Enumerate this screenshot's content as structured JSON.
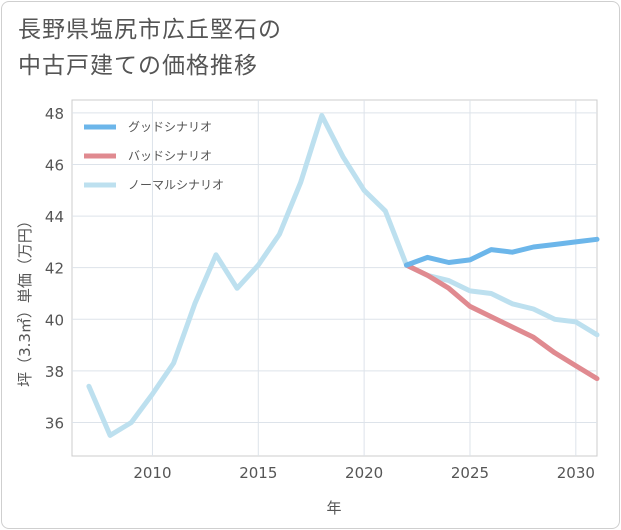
{
  "chart_data": {
    "type": "line",
    "title": [
      "長野県塩尻市広丘堅石の",
      "中古戸建ての価格推移"
    ],
    "xlabel": "年",
    "ylabel": "坪（3.3㎡）単価（万円）",
    "xlim": [
      2006.2,
      2031
    ],
    "ylim": [
      34.7,
      48.5
    ],
    "x_ticks": [
      2010,
      2015,
      2020,
      2025,
      2030
    ],
    "y_ticks": [
      36,
      38,
      40,
      42,
      44,
      46,
      48
    ],
    "grid": true,
    "legend_position": "top-left",
    "series": [
      {
        "name": "グッドシナリオ",
        "color": "#6cb6ea",
        "x": [
          2022,
          2023,
          2024,
          2025,
          2026,
          2027,
          2028,
          2029,
          2030,
          2031
        ],
        "y": [
          42.1,
          42.4,
          42.2,
          42.3,
          42.7,
          42.6,
          42.8,
          42.9,
          43.0,
          43.1
        ]
      },
      {
        "name": "バッドシナリオ",
        "color": "#e08a90",
        "x": [
          2022,
          2023,
          2024,
          2025,
          2026,
          2027,
          2028,
          2029,
          2030,
          2031
        ],
        "y": [
          42.1,
          41.7,
          41.2,
          40.5,
          40.1,
          39.7,
          39.3,
          38.7,
          38.2,
          37.7
        ]
      },
      {
        "name": "ノーマルシナリオ",
        "color": "#bde0ef",
        "x": [
          2007,
          2008,
          2009,
          2010,
          2011,
          2012,
          2013,
          2014,
          2015,
          2016,
          2017,
          2018,
          2019,
          2020,
          2021,
          2022,
          2023,
          2024,
          2025,
          2026,
          2027,
          2028,
          2029,
          2030,
          2031
        ],
        "y": [
          37.4,
          35.5,
          36.0,
          37.1,
          38.3,
          40.6,
          42.5,
          41.2,
          42.1,
          43.3,
          45.3,
          47.9,
          46.3,
          45.0,
          44.2,
          42.1,
          41.7,
          41.5,
          41.1,
          41.0,
          40.6,
          40.4,
          40.0,
          39.9,
          39.4
        ]
      }
    ]
  }
}
